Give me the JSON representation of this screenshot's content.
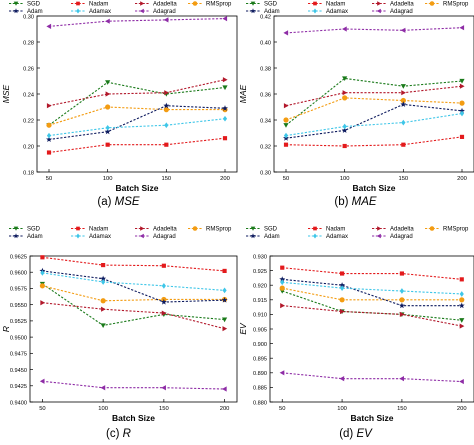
{
  "chart_data": [
    {
      "type": "line",
      "caption_label": "(a)",
      "caption_var": "MSE",
      "xlabel": "Batch Size",
      "ylabel": "MSE",
      "categories": [
        "50",
        "100",
        "150",
        "200"
      ],
      "ylim": [
        0.18,
        0.3
      ],
      "yticks": [
        "0.18",
        "0.20",
        "0.22",
        "0.24",
        "0.26",
        "0.28",
        "0.30"
      ],
      "series": [
        {
          "name": "SGD",
          "values": [
            0.216,
            0.249,
            0.24,
            0.245
          ]
        },
        {
          "name": "Nadam",
          "values": [
            0.195,
            0.201,
            0.201,
            0.206
          ]
        },
        {
          "name": "Adadelta",
          "values": [
            0.231,
            0.24,
            0.241,
            0.251
          ]
        },
        {
          "name": "RMSprop",
          "values": [
            0.216,
            0.23,
            0.228,
            0.228
          ]
        },
        {
          "name": "Adam",
          "values": [
            0.205,
            0.211,
            0.231,
            0.229
          ]
        },
        {
          "name": "Adamax",
          "values": [
            0.208,
            0.214,
            0.216,
            0.221
          ]
        },
        {
          "name": "Adagrad",
          "values": [
            0.292,
            0.296,
            0.297,
            0.298
          ]
        }
      ]
    },
    {
      "type": "line",
      "caption_label": "(b)",
      "caption_var": "MAE",
      "xlabel": "Batch Size",
      "ylabel": "MAE",
      "categories": [
        "50",
        "100",
        "150",
        "200"
      ],
      "ylim": [
        0.3,
        0.42
      ],
      "yticks": [
        "0.30",
        "0.32",
        "0.34",
        "0.36",
        "0.38",
        "0.40",
        "0.42"
      ],
      "series": [
        {
          "name": "SGD",
          "values": [
            0.336,
            0.372,
            0.366,
            0.37
          ]
        },
        {
          "name": "Nadam",
          "values": [
            0.321,
            0.32,
            0.321,
            0.327
          ]
        },
        {
          "name": "Adadelta",
          "values": [
            0.351,
            0.361,
            0.361,
            0.366
          ]
        },
        {
          "name": "RMSprop",
          "values": [
            0.34,
            0.357,
            0.355,
            0.353
          ]
        },
        {
          "name": "Adam",
          "values": [
            0.326,
            0.332,
            0.352,
            0.347
          ]
        },
        {
          "name": "Adamax",
          "values": [
            0.328,
            0.335,
            0.338,
            0.345
          ]
        },
        {
          "name": "Adagrad",
          "values": [
            0.407,
            0.41,
            0.409,
            0.411
          ]
        }
      ]
    },
    {
      "type": "line",
      "caption_label": "(c)",
      "caption_var": "R",
      "xlabel": "Batch Size",
      "ylabel": "R",
      "categories": [
        "50",
        "100",
        "150",
        "200"
      ],
      "ylim": [
        0.94,
        0.9625
      ],
      "yticks": [
        "0.9400",
        "0.9425",
        "0.9450",
        "0.9475",
        "0.9500",
        "0.9525",
        "0.9550",
        "0.9575",
        "0.9600",
        "0.9625"
      ],
      "series": [
        {
          "name": "SGD",
          "values": [
            0.9582,
            0.9518,
            0.9535,
            0.9527
          ]
        },
        {
          "name": "Nadam",
          "values": [
            0.9623,
            0.9611,
            0.961,
            0.9602
          ]
        },
        {
          "name": "Adadelta",
          "values": [
            0.9553,
            0.9543,
            0.9537,
            0.9513
          ]
        },
        {
          "name": "RMSprop",
          "values": [
            0.9579,
            0.9556,
            0.9558,
            0.9558
          ]
        },
        {
          "name": "Adam",
          "values": [
            0.9602,
            0.959,
            0.9554,
            0.9557
          ]
        },
        {
          "name": "Adamax",
          "values": [
            0.9599,
            0.9585,
            0.9579,
            0.9572
          ]
        },
        {
          "name": "Adagrad",
          "values": [
            0.9432,
            0.9422,
            0.9422,
            0.942
          ]
        }
      ]
    },
    {
      "type": "line",
      "caption_label": "(d)",
      "caption_var": "EV",
      "xlabel": "Batch Size",
      "ylabel": "EV",
      "categories": [
        "50",
        "100",
        "150",
        "200"
      ],
      "ylim": [
        0.88,
        0.93
      ],
      "yticks": [
        "0.880",
        "0.885",
        "0.890",
        "0.895",
        "0.900",
        "0.905",
        "0.910",
        "0.915",
        "0.920",
        "0.925",
        "0.930"
      ],
      "series": [
        {
          "name": "SGD",
          "values": [
            0.918,
            0.911,
            0.91,
            0.908
          ]
        },
        {
          "name": "Nadam",
          "values": [
            0.926,
            0.924,
            0.924,
            0.922
          ]
        },
        {
          "name": "Adadelta",
          "values": [
            0.913,
            0.911,
            0.91,
            0.906
          ]
        },
        {
          "name": "RMSprop",
          "values": [
            0.919,
            0.915,
            0.915,
            0.915
          ]
        },
        {
          "name": "Adam",
          "values": [
            0.922,
            0.92,
            0.913,
            0.913
          ]
        },
        {
          "name": "Adamax",
          "values": [
            0.921,
            0.919,
            0.918,
            0.917
          ]
        },
        {
          "name": "Adagrad",
          "values": [
            0.89,
            0.888,
            0.888,
            0.887
          ]
        }
      ]
    }
  ],
  "series_style": [
    {
      "name": "SGD",
      "color": "#1a7a1a",
      "marker": "triangle-down"
    },
    {
      "name": "Nadam",
      "color": "#e31a1c",
      "marker": "square"
    },
    {
      "name": "Adadelta",
      "color": "#b2182b",
      "marker": "triangle-right"
    },
    {
      "name": "RMSprop",
      "color": "#f39c12",
      "marker": "circle"
    },
    {
      "name": "Adam",
      "color": "#0d1a5e",
      "marker": "star"
    },
    {
      "name": "Adamax",
      "color": "#3ec6e8",
      "marker": "diamond"
    },
    {
      "name": "Adagrad",
      "color": "#8e2ca6",
      "marker": "triangle-left"
    }
  ]
}
